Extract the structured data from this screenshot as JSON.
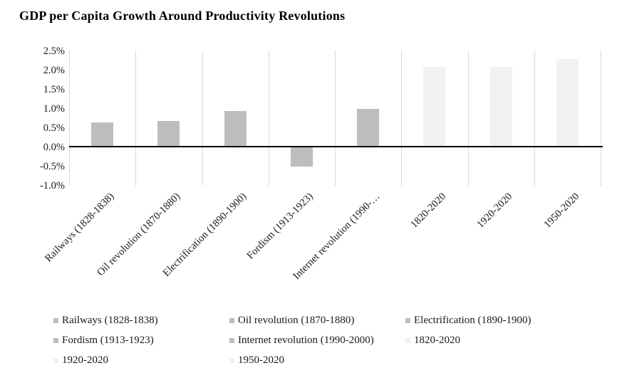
{
  "page": {
    "background": "#ffffff"
  },
  "chart_data": {
    "type": "bar",
    "title": "GDP per Capita Growth Around Productivity Revolutions",
    "categories": [
      "Railways (1828-1838)",
      "Oil revolution (1870-1880)",
      "Electrification (1890-1900)",
      "Fordism (1913-1923)",
      "Internet revolution (1990-2000)",
      "1820-2020",
      "1920-2020",
      "1950-2020"
    ],
    "x_tick_labels": [
      "Railways (1828-1838)",
      "Oil revolution (1870-1880)",
      "Electrification (1890-1900)",
      "Fordism (1913-1923)",
      "Internet revolution (1990-…",
      "1820-2020",
      "1920-2020",
      "1950-2020"
    ],
    "values": [
      0.63,
      0.67,
      0.93,
      -0.5,
      0.98,
      2.07,
      2.07,
      2.28
    ],
    "unit": "%",
    "ylabel": "",
    "xlabel": "",
    "ylim": [
      -1.0,
      2.5
    ],
    "y_tick_labels": [
      "2.5%",
      "2.0%",
      "1.5%",
      "1.0%",
      "0.5%",
      "0.0%",
      "-0.5%",
      "-1.0%"
    ],
    "y_tick_values": [
      2.5,
      2.0,
      1.5,
      1.0,
      0.5,
      0.0,
      -0.5,
      -1.0
    ],
    "series_groups": [
      "dark",
      "dark",
      "dark",
      "dark",
      "dark",
      "light",
      "light",
      "light"
    ],
    "grid": "vertical-category-separators",
    "legend_position": "bottom",
    "legend_items": [
      {
        "label": "Railways (1828-1838)",
        "shade": "dark"
      },
      {
        "label": "Oil revolution (1870-1880)",
        "shade": "dark"
      },
      {
        "label": "Electrification (1890-1900)",
        "shade": "dark"
      },
      {
        "label": "Fordism (1913-1923)",
        "shade": "dark"
      },
      {
        "label": "Internet revolution (1990-2000)",
        "shade": "dark"
      },
      {
        "label": "1820-2020",
        "shade": "light"
      },
      {
        "label": "1920-2020",
        "shade": "light"
      },
      {
        "label": "1950-2020",
        "shade": "light"
      }
    ],
    "colors": {
      "dark": "#bdbdbd",
      "light": "#f1f1f1",
      "gridline": "#d9d9d9",
      "axis_line": "#000000",
      "text": "#1a1a1a"
    }
  }
}
